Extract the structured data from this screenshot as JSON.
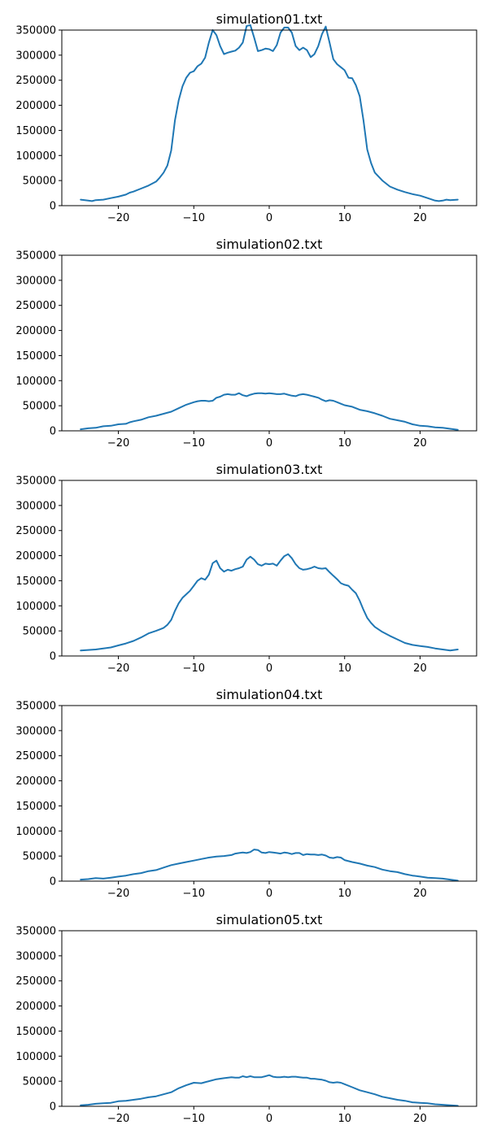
{
  "figure": {
    "line_color": "#1f77b4"
  },
  "chart_data": [
    {
      "type": "line",
      "title": "simulation01.txt",
      "xlabel": "",
      "ylabel": "",
      "xlim": [
        -27.5,
        27.5
      ],
      "ylim": [
        0,
        350000
      ],
      "xticks": [
        -20,
        -10,
        0,
        10,
        20
      ],
      "xtick_labels": [
        "−20",
        "−10",
        "0",
        "10",
        "20"
      ],
      "yticks": [
        0,
        50000,
        100000,
        150000,
        200000,
        250000,
        300000,
        350000
      ],
      "ytick_labels": [
        "0",
        "50000",
        "100000",
        "150000",
        "200000",
        "250000",
        "300000",
        "350000"
      ],
      "grid": false,
      "series": [
        {
          "x": [
            -25,
            -24,
            -23.5,
            -23,
            -22,
            -21,
            -20,
            -19,
            -18.5,
            -18,
            -17,
            -16,
            -15,
            -14.5,
            -14,
            -13.5,
            -13,
            -12.75,
            -12.5,
            -12,
            -11.5,
            -11,
            -10.5,
            -10,
            -9.5,
            -9,
            -8.5,
            -8,
            -7.5,
            -7,
            -6.5,
            -6,
            -5.5,
            -5,
            -4.5,
            -4,
            -3.5,
            -3,
            -2.5,
            -2,
            -1.5,
            -1,
            -0.5,
            0,
            0.5,
            1,
            1.5,
            2,
            2.5,
            3,
            3.5,
            4,
            4.5,
            5,
            5.5,
            6,
            6.5,
            7,
            7.5,
            8,
            8.5,
            9,
            9.5,
            10,
            10.5,
            11,
            11.5,
            12,
            12.5,
            13,
            13.5,
            14,
            15,
            16,
            17,
            18,
            19,
            20,
            21,
            22,
            22.5,
            23,
            23.5,
            24,
            25
          ],
          "y": [
            12000,
            10000,
            9000,
            11000,
            12000,
            15000,
            18000,
            22000,
            26000,
            28000,
            34000,
            40000,
            48000,
            56000,
            66000,
            80000,
            110000,
            140000,
            170000,
            210000,
            238000,
            255000,
            265000,
            268000,
            278000,
            283000,
            295000,
            325000,
            350000,
            340000,
            318000,
            302000,
            305000,
            307000,
            309000,
            315000,
            325000,
            358000,
            360000,
            335000,
            308000,
            310000,
            313000,
            312000,
            308000,
            320000,
            345000,
            355000,
            355000,
            345000,
            318000,
            310000,
            315000,
            310000,
            296000,
            302000,
            318000,
            342000,
            357000,
            325000,
            292000,
            282000,
            276000,
            270000,
            255000,
            254000,
            240000,
            218000,
            170000,
            112000,
            85000,
            66000,
            50000,
            38000,
            32000,
            27000,
            23000,
            20000,
            15000,
            10000,
            9000,
            10000,
            12000,
            11000,
            12000
          ]
        }
      ]
    },
    {
      "type": "line",
      "title": "simulation02.txt",
      "xlabel": "",
      "ylabel": "",
      "xlim": [
        -27.5,
        27.5
      ],
      "ylim": [
        0,
        350000
      ],
      "xticks": [
        -20,
        -10,
        0,
        10,
        20
      ],
      "xtick_labels": [
        "−20",
        "−10",
        "0",
        "10",
        "20"
      ],
      "yticks": [
        0,
        50000,
        100000,
        150000,
        200000,
        250000,
        300000,
        350000
      ],
      "ytick_labels": [
        "0",
        "50000",
        "100000",
        "150000",
        "200000",
        "250000",
        "300000",
        "350000"
      ],
      "grid": false,
      "series": [
        {
          "x": [
            -25,
            -24,
            -23,
            -22,
            -21,
            -20,
            -19,
            -18.5,
            -18,
            -17,
            -16,
            -15,
            -14,
            -13,
            -12,
            -11,
            -10,
            -9.5,
            -9,
            -8.5,
            -8,
            -7.5,
            -7,
            -6.5,
            -6,
            -5.5,
            -5,
            -4.5,
            -4,
            -3.5,
            -3,
            -2.5,
            -2,
            -1.5,
            -1,
            -0.5,
            0,
            0.5,
            1,
            1.5,
            2,
            2.5,
            3,
            3.5,
            4,
            4.5,
            5,
            5.5,
            6,
            6.5,
            7,
            7.5,
            8,
            8.5,
            9,
            9.5,
            10,
            11,
            12,
            13,
            14,
            15,
            16,
            17,
            18,
            19,
            20,
            21,
            22,
            23,
            24,
            25
          ],
          "y": [
            3000,
            5000,
            6000,
            9000,
            10000,
            13000,
            14000,
            17000,
            19000,
            22000,
            27000,
            30000,
            34000,
            38000,
            45000,
            52000,
            57000,
            59000,
            60000,
            60000,
            59000,
            60000,
            66000,
            68000,
            72000,
            73000,
            72000,
            72000,
            75000,
            71000,
            69000,
            72000,
            74000,
            75000,
            75000,
            74000,
            75000,
            74000,
            73000,
            73000,
            74000,
            72000,
            70000,
            69000,
            72000,
            73000,
            72000,
            70000,
            68000,
            66000,
            62000,
            59000,
            61000,
            60000,
            57000,
            54000,
            51000,
            48000,
            42000,
            39000,
            35000,
            30000,
            24000,
            21000,
            18000,
            13000,
            10000,
            9000,
            7000,
            6000,
            4000,
            2000
          ]
        }
      ]
    },
    {
      "type": "line",
      "title": "simulation03.txt",
      "xlabel": "",
      "ylabel": "",
      "xlim": [
        -27.5,
        27.5
      ],
      "ylim": [
        0,
        350000
      ],
      "xticks": [
        -20,
        -10,
        0,
        10,
        20
      ],
      "xtick_labels": [
        "−20",
        "−10",
        "0",
        "10",
        "20"
      ],
      "yticks": [
        0,
        50000,
        100000,
        150000,
        200000,
        250000,
        300000,
        350000
      ],
      "ytick_labels": [
        "0",
        "50000",
        "100000",
        "150000",
        "200000",
        "250000",
        "300000",
        "350000"
      ],
      "grid": false,
      "series": [
        {
          "x": [
            -25,
            -24,
            -23,
            -22,
            -21,
            -20,
            -19,
            -18,
            -17,
            -16,
            -15,
            -14.5,
            -14,
            -13.5,
            -13,
            -12.5,
            -12,
            -11.5,
            -11,
            -10.5,
            -10,
            -9.5,
            -9,
            -8.5,
            -8,
            -7.5,
            -7,
            -6.5,
            -6,
            -5.5,
            -5,
            -4.5,
            -4,
            -3.5,
            -3,
            -2.5,
            -2,
            -1.5,
            -1,
            -0.5,
            0,
            0.5,
            1,
            1.5,
            2,
            2.5,
            3,
            3.5,
            4,
            4.5,
            5,
            5.5,
            6,
            6.5,
            7,
            7.5,
            8,
            8.5,
            9,
            9.5,
            10,
            10.5,
            11,
            11.5,
            12,
            12.5,
            13,
            13.5,
            14,
            15,
            16,
            17,
            18,
            19,
            20,
            21,
            22,
            23,
            24,
            25
          ],
          "y": [
            11000,
            12000,
            13000,
            15000,
            17000,
            21000,
            25000,
            30000,
            37000,
            45000,
            50000,
            53000,
            56000,
            62000,
            72000,
            90000,
            105000,
            116000,
            123000,
            130000,
            140000,
            150000,
            155000,
            152000,
            162000,
            185000,
            190000,
            175000,
            168000,
            172000,
            170000,
            173000,
            175000,
            178000,
            192000,
            198000,
            192000,
            183000,
            180000,
            184000,
            183000,
            184000,
            180000,
            190000,
            199000,
            203000,
            195000,
            183000,
            175000,
            172000,
            173000,
            175000,
            178000,
            175000,
            174000,
            175000,
            167000,
            160000,
            153000,
            145000,
            142000,
            140000,
            132000,
            125000,
            110000,
            92000,
            76000,
            66000,
            58000,
            48000,
            40000,
            33000,
            26000,
            22000,
            20000,
            18000,
            15000,
            13000,
            11000,
            13000
          ]
        }
      ]
    },
    {
      "type": "line",
      "title": "simulation04.txt",
      "xlabel": "",
      "ylabel": "",
      "xlim": [
        -27.5,
        27.5
      ],
      "ylim": [
        0,
        350000
      ],
      "xticks": [
        -20,
        -10,
        0,
        10,
        20
      ],
      "xtick_labels": [
        "−20",
        "−10",
        "0",
        "10",
        "20"
      ],
      "yticks": [
        0,
        50000,
        100000,
        150000,
        200000,
        250000,
        300000,
        350000
      ],
      "ytick_labels": [
        "0",
        "50000",
        "100000",
        "150000",
        "200000",
        "250000",
        "300000",
        "350000"
      ],
      "grid": false,
      "series": [
        {
          "x": [
            -25,
            -24,
            -23,
            -22,
            -21,
            -20,
            -19,
            -18,
            -17,
            -16,
            -15,
            -14,
            -13,
            -12,
            -11,
            -10,
            -9,
            -8,
            -7,
            -6,
            -5,
            -4.5,
            -4,
            -3.5,
            -3,
            -2.5,
            -2,
            -1.5,
            -1,
            -0.5,
            0,
            0.5,
            1,
            1.5,
            2,
            2.5,
            3,
            3.5,
            4,
            4.5,
            5,
            5.5,
            6,
            6.5,
            7,
            7.5,
            8,
            8.5,
            9,
            9.5,
            10,
            11,
            12,
            13,
            14,
            15,
            16,
            17,
            18,
            19,
            20,
            21,
            22,
            23,
            24,
            25
          ],
          "y": [
            3000,
            4000,
            6000,
            5000,
            7000,
            9000,
            11000,
            14000,
            16000,
            20000,
            22000,
            27000,
            32000,
            35000,
            38000,
            41000,
            44000,
            47000,
            49000,
            50000,
            52000,
            55000,
            56000,
            57000,
            56000,
            58000,
            63000,
            62000,
            57000,
            56000,
            58000,
            57000,
            56000,
            55000,
            57000,
            56000,
            54000,
            56000,
            56000,
            52000,
            54000,
            53000,
            53000,
            52000,
            53000,
            51000,
            47000,
            46000,
            48000,
            47000,
            42000,
            38000,
            35000,
            31000,
            28000,
            23000,
            20000,
            18000,
            14000,
            11000,
            9000,
            7000,
            6000,
            5000,
            3000,
            1000
          ]
        }
      ]
    },
    {
      "type": "line",
      "title": "simulation05.txt",
      "xlabel": "",
      "ylabel": "",
      "xlim": [
        -27.5,
        27.5
      ],
      "ylim": [
        0,
        350000
      ],
      "xticks": [
        -20,
        -10,
        0,
        10,
        20
      ],
      "xtick_labels": [
        "−20",
        "−10",
        "0",
        "10",
        "20"
      ],
      "yticks": [
        0,
        50000,
        100000,
        150000,
        200000,
        250000,
        300000,
        350000
      ],
      "ytick_labels": [
        "0",
        "50000",
        "100000",
        "150000",
        "200000",
        "250000",
        "300000",
        "350000"
      ],
      "grid": false,
      "series": [
        {
          "x": [
            -25,
            -24,
            -23,
            -22,
            -21,
            -20,
            -19,
            -18,
            -17,
            -16,
            -15,
            -14,
            -13,
            -12,
            -11,
            -10,
            -9,
            -8,
            -7,
            -6,
            -5,
            -4.5,
            -4,
            -3.5,
            -3,
            -2.5,
            -2,
            -1.5,
            -1,
            -0.5,
            0,
            0.5,
            1,
            1.5,
            2,
            2.5,
            3,
            3.5,
            4,
            4.5,
            5,
            5.5,
            6,
            6.5,
            7,
            7.5,
            8,
            8.5,
            9,
            9.5,
            10,
            11,
            12,
            13,
            14,
            15,
            16,
            17,
            18,
            19,
            20,
            21,
            22,
            23,
            24,
            25
          ],
          "y": [
            2000,
            3000,
            5000,
            6000,
            7000,
            10000,
            11000,
            13000,
            15000,
            18000,
            20000,
            24000,
            28000,
            36000,
            42000,
            47000,
            46000,
            50000,
            54000,
            56000,
            58000,
            57000,
            57000,
            60000,
            58000,
            60000,
            58000,
            58000,
            58000,
            60000,
            62000,
            59000,
            58000,
            58000,
            59000,
            58000,
            59000,
            59000,
            58000,
            57000,
            57000,
            55000,
            55000,
            54000,
            53000,
            51000,
            48000,
            47000,
            48000,
            47000,
            44000,
            38000,
            32000,
            28000,
            24000,
            19000,
            16000,
            13000,
            11000,
            8000,
            7000,
            6000,
            4000,
            3000,
            2000,
            1000
          ]
        }
      ]
    }
  ]
}
